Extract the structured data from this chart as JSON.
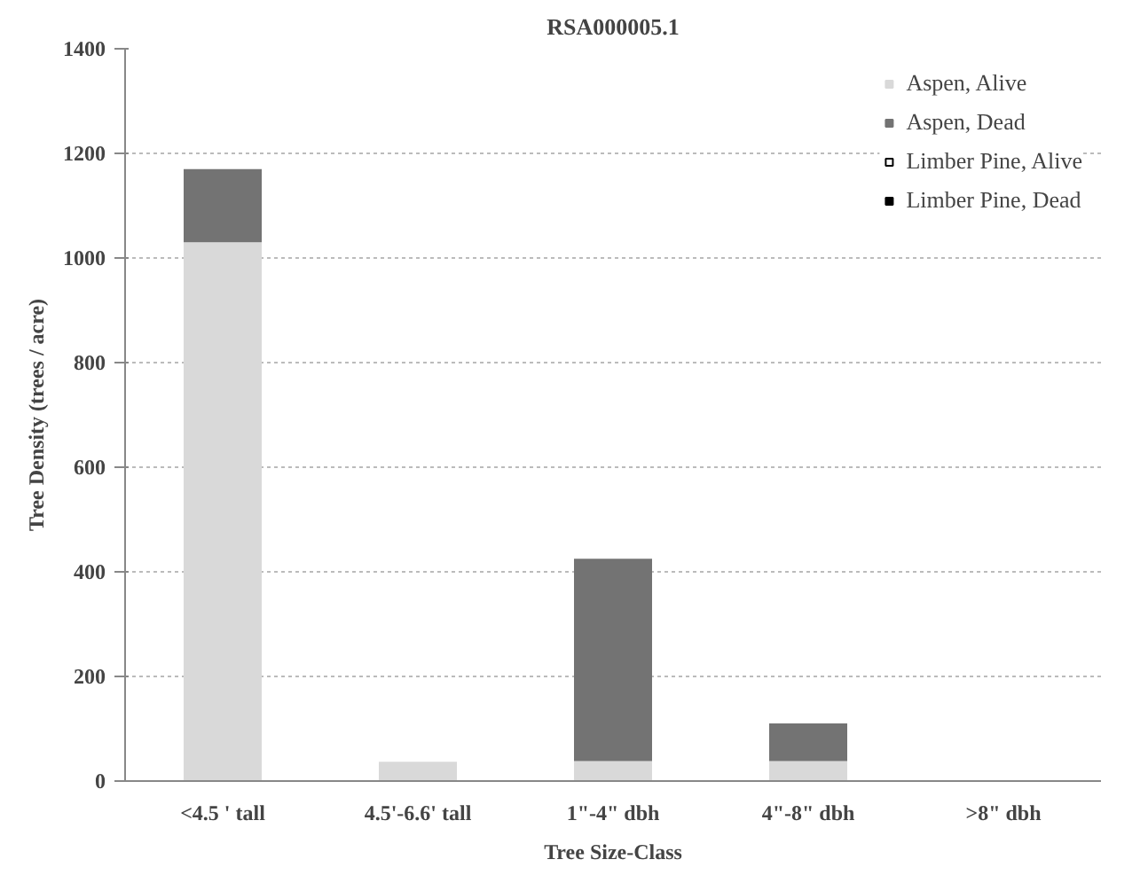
{
  "chart_data": {
    "type": "bar",
    "title": "RSA000005.1",
    "xlabel": "Tree Size-Class",
    "ylabel": "Tree Density (trees / acre)",
    "categories": [
      "<4.5 ' tall",
      "4.5'-6.6' tall",
      "1\"-4\" dbh",
      "4\"-8\" dbh",
      ">8\" dbh"
    ],
    "stacked": true,
    "series": [
      {
        "name": "Aspen, Alive",
        "color": "#d9d9d9",
        "values": [
          1030,
          37,
          38,
          38,
          0
        ]
      },
      {
        "name": "Aspen, Dead",
        "color": "#737373",
        "values": [
          140,
          0,
          387,
          72,
          0
        ]
      },
      {
        "name": "Limber Pine, Alive",
        "color": "#ffffff",
        "values": [
          0,
          0,
          0,
          0,
          0
        ]
      },
      {
        "name": "Limber Pine, Dead",
        "color": "#000000",
        "values": [
          0,
          0,
          0,
          0,
          0
        ]
      }
    ],
    "ylim": [
      0,
      1400
    ],
    "yticks": [
      0,
      200,
      400,
      600,
      800,
      1000,
      1200,
      1400
    ],
    "grid": "y",
    "legend": "top right"
  }
}
